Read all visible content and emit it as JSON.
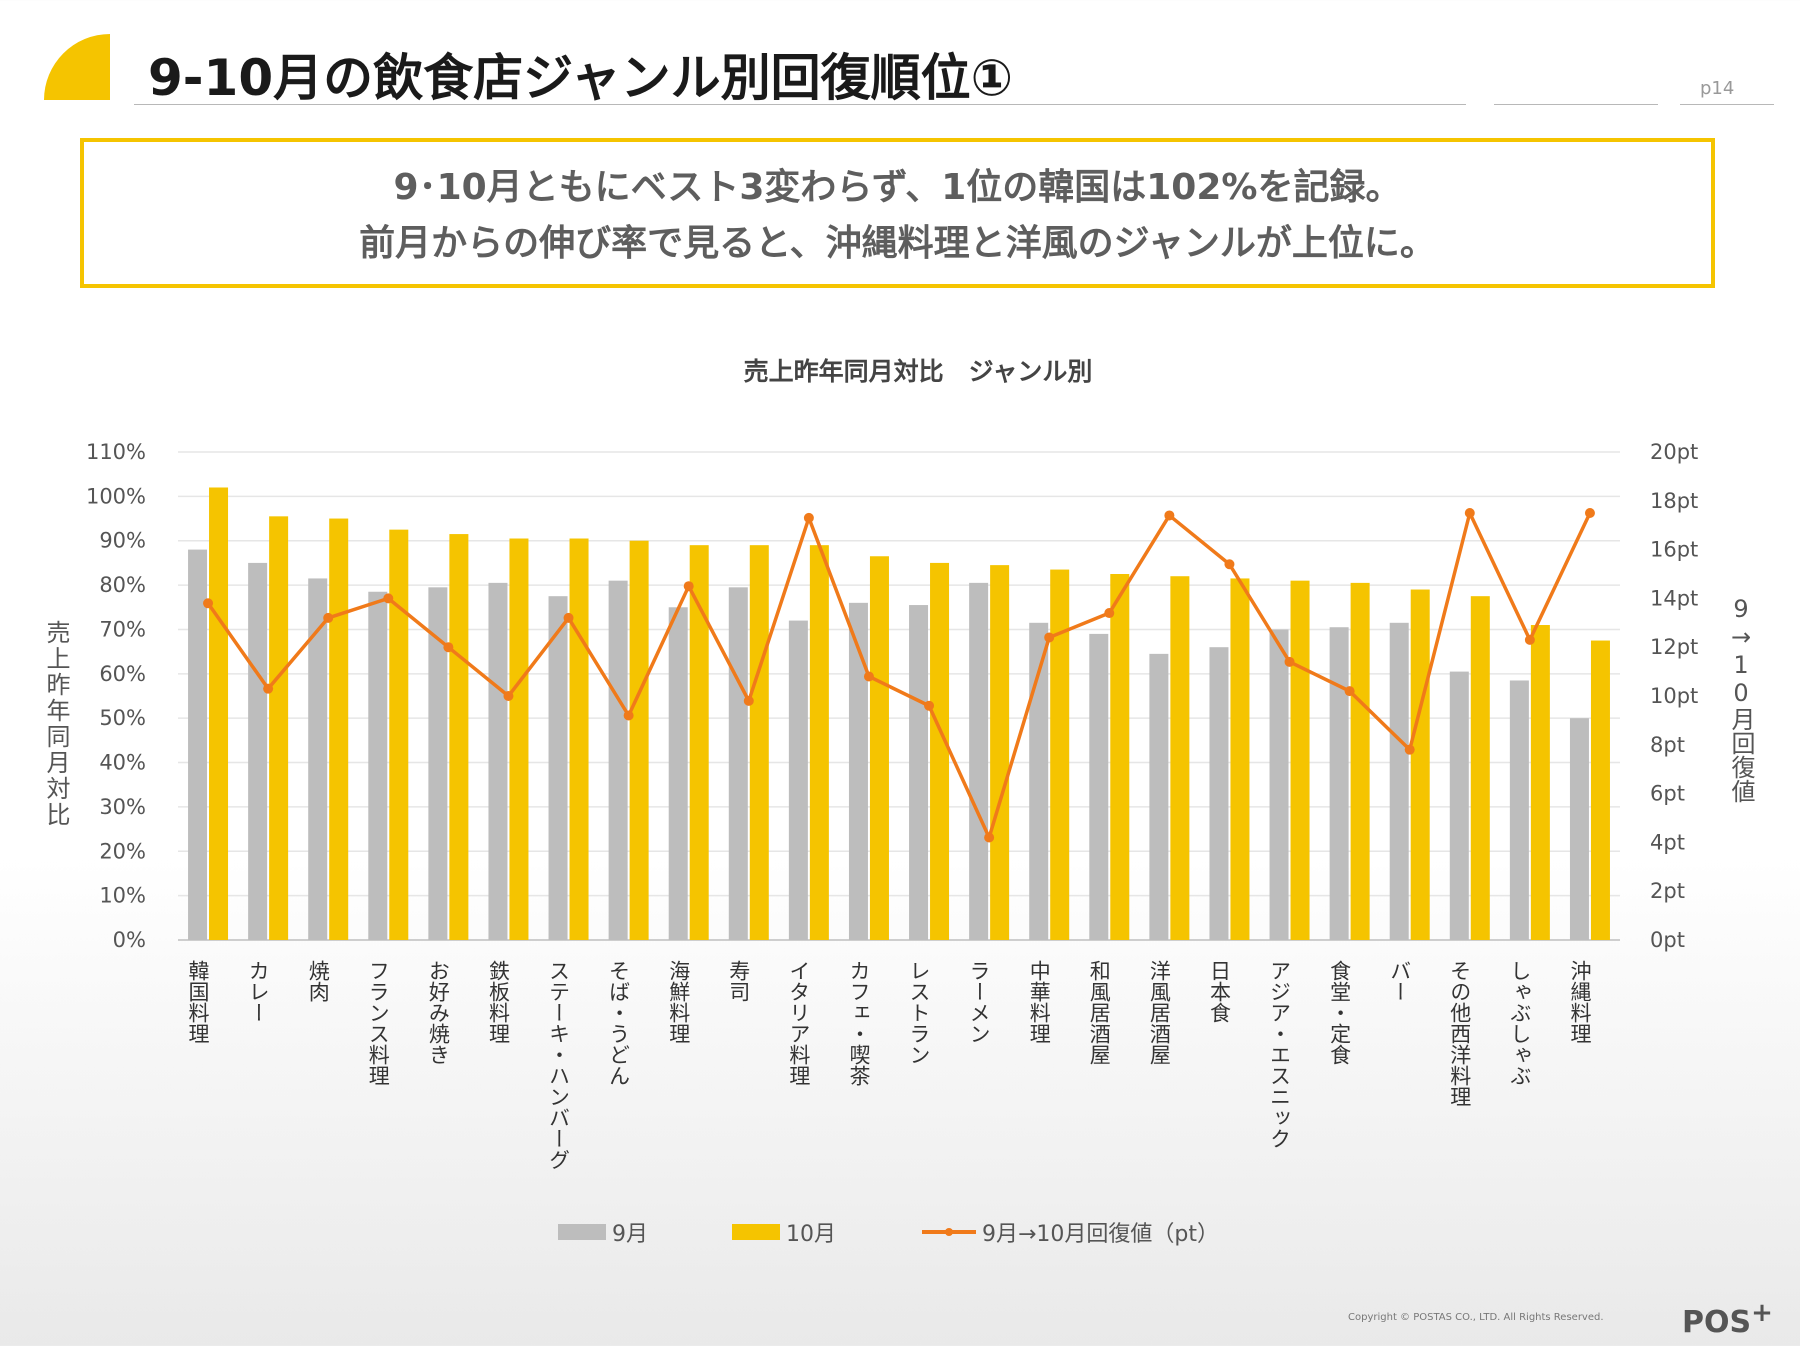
{
  "slide": {
    "title": "9-10月の飲食店ジャンル別回復順位①",
    "page": "p14",
    "summary_line1": "9･10月ともにベスト3変わらず、1位の韓国は102%を記録。",
    "summary_line2": "前月からの伸び率で見ると、沖縄料理と洋風のジャンルが上位に。",
    "copyright": "Copyright © POSTAS CO., LTD. All Rights Reserved.",
    "logo": "POS",
    "logo_sup": "+"
  },
  "colors": {
    "sep": "#bdbdbd",
    "oct": "#f5c400",
    "line": "#f07a1a",
    "accent": "#f5c400"
  },
  "chart_data": {
    "type": "bar",
    "title": "売上昨年同月対比　ジャンル別",
    "ylabel": "売上昨年同月対比",
    "y2label": "9→10月回復値",
    "ylim": [
      0,
      110
    ],
    "y2lim": [
      0,
      20
    ],
    "yticks": [
      "0%",
      "10%",
      "20%",
      "30%",
      "40%",
      "50%",
      "60%",
      "70%",
      "80%",
      "90%",
      "100%",
      "110%"
    ],
    "y2ticks": [
      "0pt",
      "2pt",
      "4pt",
      "6pt",
      "8pt",
      "10pt",
      "12pt",
      "14pt",
      "16pt",
      "18pt",
      "20pt"
    ],
    "grid": true,
    "legend_position": "bottom",
    "categories": [
      "韓国料理",
      "カレー",
      "焼肉",
      "フランス料理",
      "お好み焼き",
      "鉄板料理",
      "ステーキ・ハンバーグ",
      "そば・うどん",
      "海鮮料理",
      "寿司",
      "イタリア料理",
      "カフェ・喫茶",
      "レストラン",
      "ラーメン",
      "中華料理",
      "和風居酒屋",
      "洋風居酒屋",
      "日本食",
      "アジア・エスニック",
      "食堂・定食",
      "バー",
      "その他西洋料理",
      "しゃぶしゃぶ",
      "沖縄料理"
    ],
    "series": [
      {
        "name": "9月",
        "type": "bar",
        "values": [
          88,
          85,
          81.5,
          78.5,
          79.5,
          80.5,
          77.5,
          81,
          75,
          79.5,
          72,
          76,
          75.5,
          80.5,
          71.5,
          69,
          64.5,
          66,
          70,
          70.5,
          71.5,
          60.5,
          58.5,
          50
        ]
      },
      {
        "name": "10月",
        "type": "bar",
        "values": [
          102,
          95.5,
          95,
          92.5,
          91.5,
          90.5,
          90.5,
          90,
          89,
          89,
          89,
          86.5,
          85,
          84.5,
          83.5,
          82.5,
          82,
          81.5,
          81,
          80.5,
          79,
          77.5,
          71,
          67.5
        ]
      },
      {
        "name": "9月→10月回復値（pt）",
        "type": "line",
        "axis": "right",
        "values": [
          13.8,
          10.3,
          13.2,
          14,
          12,
          10,
          13.2,
          9.2,
          14.5,
          9.8,
          17.3,
          10.8,
          9.6,
          4.2,
          12.4,
          13.4,
          17.4,
          15.4,
          11.4,
          10.2,
          7.8,
          17.5,
          12.3,
          17.5
        ]
      }
    ]
  }
}
